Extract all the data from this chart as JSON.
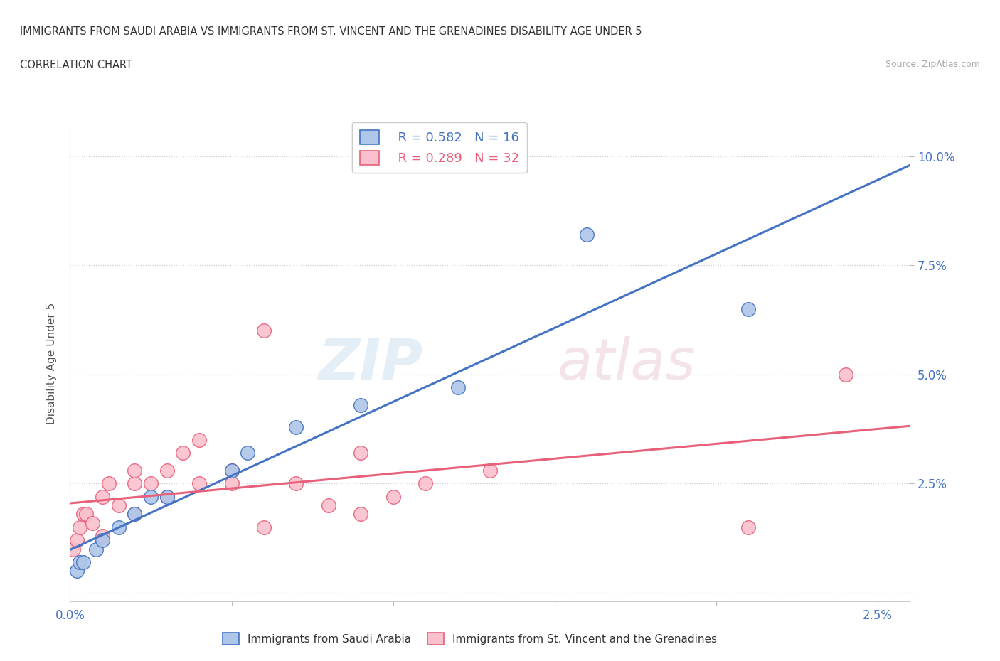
{
  "title_line1": "IMMIGRANTS FROM SAUDI ARABIA VS IMMIGRANTS FROM ST. VINCENT AND THE GRENADINES DISABILITY AGE UNDER 5",
  "title_line2": "CORRELATION CHART",
  "source": "Source: ZipAtlas.com",
  "ylabel": "Disability Age Under 5",
  "xlim": [
    0.0,
    0.026
  ],
  "ylim": [
    -0.002,
    0.107
  ],
  "xticks": [
    0.0,
    0.005,
    0.01,
    0.015,
    0.02,
    0.025
  ],
  "xticklabels": [
    "0.0%",
    "",
    "",
    "",
    "",
    "2.5%"
  ],
  "yticks": [
    0.0,
    0.025,
    0.05,
    0.075,
    0.1
  ],
  "yticklabels": [
    "",
    "2.5%",
    "5.0%",
    "7.5%",
    "10.0%"
  ],
  "saudi_color": "#aec6e8",
  "saudi_line_color": "#4472c4",
  "stvincent_color": "#f9c0ce",
  "stvincent_line_color": "#e8607a",
  "R_saudi": 0.582,
  "N_saudi": 16,
  "R_stvincent": 0.289,
  "N_stvincent": 32,
  "legend_label_saudi": "Immigrants from Saudi Arabia",
  "legend_label_stvincent": "Immigrants from St. Vincent and the Grenadines",
  "watermark_zip": "ZIP",
  "watermark_atlas": "atlas",
  "saudi_x": [
    0.0002,
    0.0003,
    0.0004,
    0.0008,
    0.001,
    0.0015,
    0.002,
    0.0025,
    0.003,
    0.005,
    0.0055,
    0.007,
    0.009,
    0.012,
    0.016,
    0.021
  ],
  "saudi_y": [
    0.005,
    0.007,
    0.007,
    0.01,
    0.012,
    0.015,
    0.018,
    0.022,
    0.022,
    0.028,
    0.032,
    0.038,
    0.043,
    0.047,
    0.082,
    0.065
  ],
  "stvincent_x": [
    0.0001,
    0.0002,
    0.0003,
    0.0004,
    0.0005,
    0.0007,
    0.001,
    0.001,
    0.0012,
    0.0015,
    0.002,
    0.002,
    0.002,
    0.0025,
    0.003,
    0.003,
    0.0035,
    0.004,
    0.004,
    0.005,
    0.005,
    0.006,
    0.006,
    0.007,
    0.008,
    0.009,
    0.009,
    0.01,
    0.011,
    0.013,
    0.021,
    0.024
  ],
  "stvincent_y": [
    0.01,
    0.012,
    0.015,
    0.018,
    0.018,
    0.016,
    0.013,
    0.022,
    0.025,
    0.02,
    0.018,
    0.025,
    0.028,
    0.025,
    0.022,
    0.028,
    0.032,
    0.025,
    0.035,
    0.025,
    0.028,
    0.015,
    0.06,
    0.025,
    0.02,
    0.018,
    0.032,
    0.022,
    0.025,
    0.028,
    0.015,
    0.05
  ]
}
